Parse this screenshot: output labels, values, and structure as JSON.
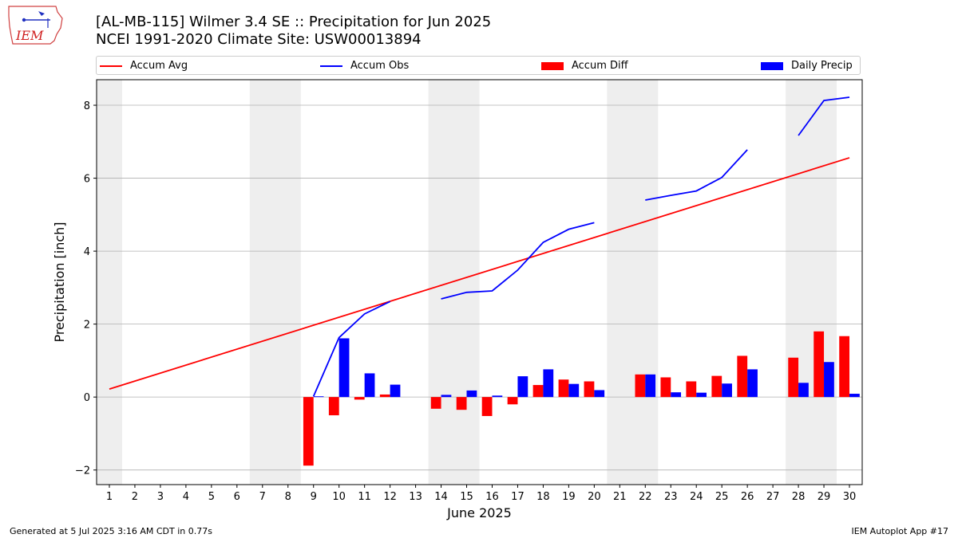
{
  "header": {
    "title_line1": "[AL-MB-115] Wilmer 3.4 SE :: Precipitation for Jun 2025",
    "title_line2": "NCEI 1991-2020 Climate Site: USW00013894",
    "logo_text": "IEM"
  },
  "footer": {
    "generated": "Generated at 5 Jul 2025 3:16 AM CDT in 0.77s",
    "app": "IEM Autoplot App #17"
  },
  "chart_data": {
    "type": "bar",
    "xlabel": "June 2025",
    "ylabel": "Precipitation [inch]",
    "ylim": [
      -2.4,
      8.7
    ],
    "xlim": [
      0.5,
      30.5
    ],
    "yticks": [
      -2,
      0,
      2,
      4,
      6,
      8
    ],
    "xtick_labels": [
      "1",
      "2",
      "3",
      "4",
      "5",
      "6",
      "7",
      "8",
      "9",
      "10",
      "11",
      "12",
      "13",
      "14",
      "15",
      "16",
      "17",
      "18",
      "19",
      "20",
      "21",
      "22",
      "23",
      "24",
      "25",
      "26",
      "27",
      "28",
      "29",
      "30"
    ],
    "grid": "horizontal",
    "legend_position": "top",
    "weekend_shading": [
      [
        0.5,
        1.5
      ],
      [
        6.5,
        8.5
      ],
      [
        13.5,
        15.5
      ],
      [
        20.5,
        22.5
      ],
      [
        27.5,
        29.5
      ]
    ],
    "colors": {
      "accum_avg": "#ff0000",
      "accum_obs": "#0000ff",
      "accum_diff": "#ff0000",
      "daily_precip": "#0000ff",
      "shade": "#eeeeee",
      "grid": "#b0b0b0"
    },
    "series": [
      {
        "name": "Accum Avg",
        "kind": "line",
        "x": [
          1,
          30
        ],
        "y": [
          0.22,
          6.56
        ]
      },
      {
        "name": "Accum Obs",
        "kind": "line",
        "segments": [
          {
            "x": [
              9,
              10,
              11,
              12
            ],
            "y": [
              0.02,
              1.63,
              2.28,
              2.62
            ]
          },
          {
            "x": [
              14,
              15,
              16,
              17,
              18,
              19,
              20
            ],
            "y": [
              2.69,
              2.87,
              2.91,
              3.48,
              4.24,
              4.6,
              4.78
            ]
          },
          {
            "x": [
              22,
              23,
              24,
              25,
              26
            ],
            "y": [
              5.4,
              5.53,
              5.65,
              6.02,
              6.78
            ]
          },
          {
            "x": [
              28,
              29,
              30
            ],
            "y": [
              7.17,
              8.13,
              8.22
            ]
          }
        ]
      },
      {
        "name": "Accum Diff",
        "kind": "bar",
        "x": [
          9,
          10,
          11,
          12,
          14,
          15,
          16,
          17,
          18,
          19,
          20,
          22,
          23,
          24,
          25,
          26,
          28,
          29,
          30
        ],
        "y": [
          -1.88,
          -0.5,
          -0.07,
          0.07,
          -0.32,
          -0.35,
          -0.52,
          -0.2,
          0.33,
          0.48,
          0.43,
          0.62,
          0.54,
          0.43,
          0.58,
          1.13,
          1.08,
          1.8,
          1.67
        ]
      },
      {
        "name": "Daily Precip",
        "kind": "bar",
        "x": [
          9,
          10,
          11,
          12,
          14,
          15,
          16,
          17,
          18,
          19,
          20,
          22,
          23,
          24,
          25,
          26,
          28,
          29,
          30
        ],
        "y": [
          0.02,
          1.61,
          0.65,
          0.34,
          0.06,
          0.18,
          0.04,
          0.57,
          0.76,
          0.36,
          0.19,
          0.62,
          0.13,
          0.12,
          0.37,
          0.76,
          0.39,
          0.96,
          0.09
        ]
      }
    ]
  }
}
